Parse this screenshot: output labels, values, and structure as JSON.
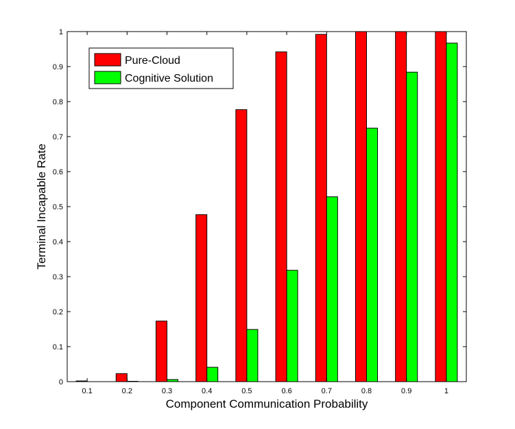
{
  "chart_data": {
    "type": "bar",
    "title": "",
    "xlabel": "Component Communication Probability",
    "ylabel": "Terminal Incapable Rate",
    "categories": [
      "0.1",
      "0.2",
      "0.3",
      "0.4",
      "0.5",
      "0.6",
      "0.7",
      "0.8",
      "0.9",
      "1"
    ],
    "ylim": [
      0,
      1
    ],
    "yticks": [
      "0",
      "0.1",
      "0.2",
      "0.3",
      "0.4",
      "0.5",
      "0.6",
      "0.7",
      "0.8",
      "0.9",
      "1"
    ],
    "grid": false,
    "legend_position": "top-left",
    "series": [
      {
        "name": "Pure-Cloud",
        "color": "#ff0000",
        "values": [
          0.002,
          0.023,
          0.173,
          0.477,
          0.777,
          0.942,
          0.992,
          1.0,
          1.0,
          1.0
        ]
      },
      {
        "name": "Cognitive Solution",
        "color": "#00ff00",
        "values": [
          0.0,
          0.001,
          0.006,
          0.041,
          0.149,
          0.318,
          0.528,
          0.724,
          0.884,
          0.967
        ]
      }
    ]
  }
}
